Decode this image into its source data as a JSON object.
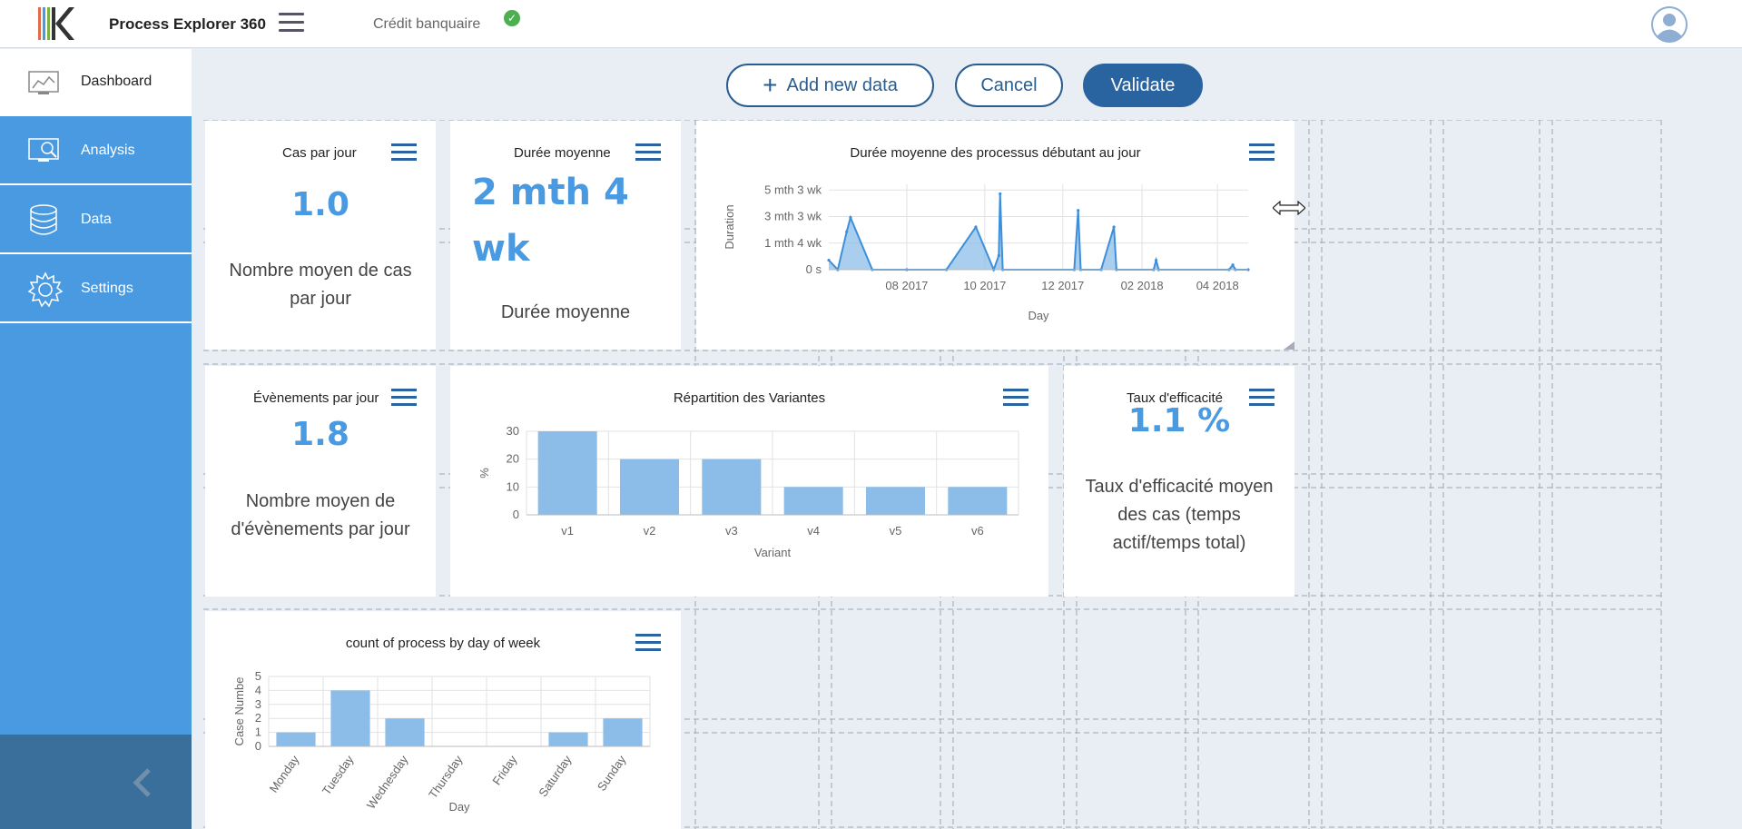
{
  "header": {
    "app_title": "Process Explorer 360",
    "project_name": "Crédit banquaire"
  },
  "sidebar": {
    "items": [
      {
        "label": "Dashboard",
        "icon": "dashboard-icon",
        "active": true
      },
      {
        "label": "Analysis",
        "icon": "analysis-icon",
        "active": false
      },
      {
        "label": "Data",
        "icon": "database-icon",
        "active": false
      },
      {
        "label": "Settings",
        "icon": "gear-icon",
        "active": false
      }
    ]
  },
  "toolbar": {
    "add_label": "Add new data",
    "cancel_label": "Cancel",
    "validate_label": "Validate"
  },
  "cards": {
    "cas_par_jour": {
      "title": "Cas par jour",
      "value": "1.0",
      "desc": "Nombre moyen de cas par jour"
    },
    "duree_moyenne": {
      "title": "Durée moyenne",
      "value": "2 mth 4 wk",
      "desc": "Durée moyenne"
    },
    "evenements": {
      "title": "Évènements par jour",
      "value": "1.8",
      "desc": "Nombre moyen de d'évènements par jour"
    },
    "efficacite": {
      "title": "Taux d'efficacité",
      "value": "1.1 %",
      "desc": "Taux d'efficacité moyen des cas (temps actif/temps total)"
    }
  },
  "colors": {
    "accent": "#4a9ae2",
    "primary": "#2a64a0",
    "sidebar": "#4a9ae2",
    "bar": "#8cbde8"
  },
  "chart_data": [
    {
      "type": "area",
      "title": "Durée moyenne des processus débutant au jour",
      "xlabel": "Day",
      "ylabel": "Duration",
      "x_ticks": [
        "08 2017",
        "10 2017",
        "12 2017",
        "02 2018",
        "04 2018"
      ],
      "y_ticks": [
        "0 s",
        "1 mth 4 wk",
        "3 mth 3 wk",
        "5 mth 3 wk"
      ],
      "ylim_days": [
        0,
        180
      ],
      "series": [
        {
          "points": [
            {
              "x": "2017-06-01",
              "y": 20
            },
            {
              "x": "2017-06-08",
              "y": 0
            },
            {
              "x": "2017-06-15",
              "y": 80
            },
            {
              "x": "2017-06-18",
              "y": 110
            },
            {
              "x": "2017-07-05",
              "y": 0
            },
            {
              "x": "2017-08-01",
              "y": 0
            },
            {
              "x": "2017-09-01",
              "y": 0
            },
            {
              "x": "2017-09-24",
              "y": 90
            },
            {
              "x": "2017-10-08",
              "y": 0
            },
            {
              "x": "2017-10-12",
              "y": 30
            },
            {
              "x": "2017-10-13",
              "y": 160
            },
            {
              "x": "2017-10-15",
              "y": 0
            },
            {
              "x": "2017-12-10",
              "y": 0
            },
            {
              "x": "2017-12-13",
              "y": 125
            },
            {
              "x": "2017-12-15",
              "y": 0
            },
            {
              "x": "2017-12-31",
              "y": 0
            },
            {
              "x": "2018-01-10",
              "y": 90
            },
            {
              "x": "2018-01-12",
              "y": 0
            },
            {
              "x": "2018-02-10",
              "y": 0
            },
            {
              "x": "2018-02-12",
              "y": 20
            },
            {
              "x": "2018-02-14",
              "y": 0
            },
            {
              "x": "2018-04-10",
              "y": 0
            },
            {
              "x": "2018-04-13",
              "y": 10
            },
            {
              "x": "2018-04-15",
              "y": 0
            },
            {
              "x": "2018-04-25",
              "y": 0
            }
          ]
        }
      ]
    },
    {
      "type": "bar",
      "title": "Répartition des Variantes",
      "xlabel": "Variant",
      "ylabel": "%",
      "categories": [
        "v1",
        "v2",
        "v3",
        "v4",
        "v5",
        "v6"
      ],
      "values": [
        30,
        20,
        20,
        10,
        10,
        10
      ],
      "y_ticks": [
        "0",
        "10",
        "20",
        "30"
      ],
      "ylim": [
        0,
        30
      ]
    },
    {
      "type": "bar",
      "title": "count of process by day of week",
      "xlabel": "Day",
      "ylabel": "Case Numbe",
      "categories": [
        "Monday",
        "Tuesday",
        "Wednesday",
        "Thursday",
        "Friday",
        "Saturday",
        "Sunday"
      ],
      "values": [
        1,
        4,
        2,
        0,
        0,
        1,
        2
      ],
      "y_ticks": [
        "0",
        "1",
        "2",
        "3",
        "4",
        "5"
      ],
      "ylim": [
        0,
        5
      ]
    }
  ]
}
